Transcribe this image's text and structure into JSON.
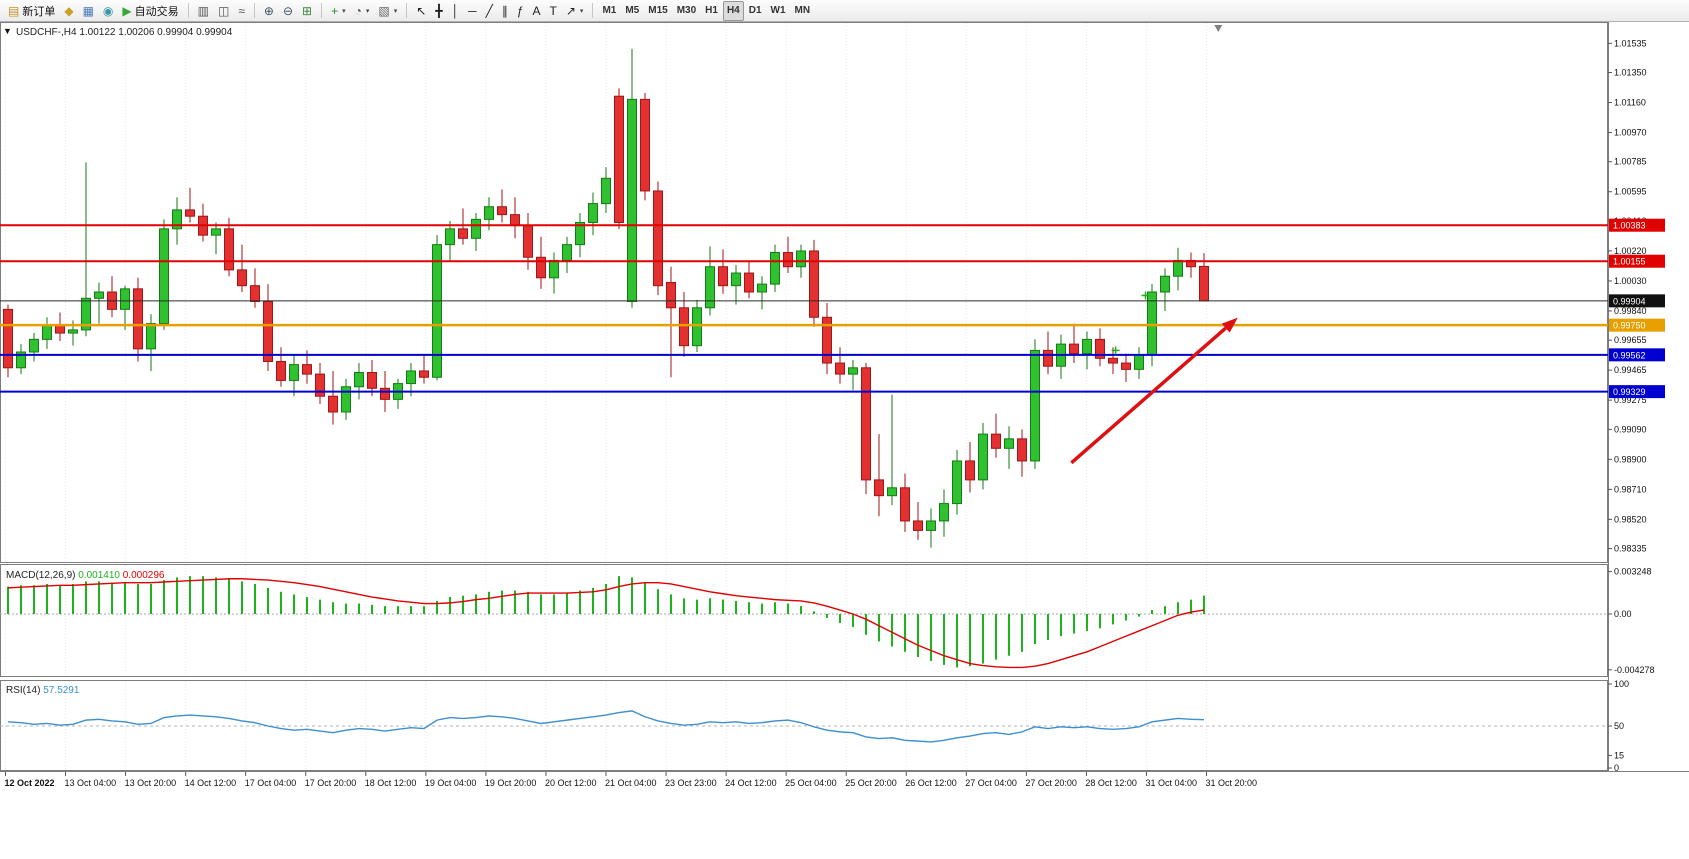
{
  "toolbar": {
    "notification_count": "1",
    "groups": [
      {
        "name": "trade",
        "items": [
          {
            "name": "new-order-button",
            "icon": "new-order-icon",
            "glyph": "▤",
            "glyph_color": "#c89028",
            "label": "新订单"
          },
          {
            "name": "market-watch-button",
            "icon": "market-watch-icon",
            "glyph": "◆",
            "glyph_color": "#c8a028"
          },
          {
            "name": "data-window-button",
            "icon": "data-window-icon",
            "glyph": "▦",
            "glyph_color": "#4878b8"
          },
          {
            "name": "navigator-button",
            "icon": "navigator-icon",
            "glyph": "◉",
            "glyph_color": "#3898a8"
          },
          {
            "name": "autotrading-button",
            "icon": "autotrading-icon",
            "glyph": "▶",
            "glyph_color": "#38a838",
            "label": "自动交易"
          }
        ]
      },
      {
        "name": "chart-type",
        "items": [
          {
            "name": "bar-chart-button",
            "icon": "bar-chart-icon",
            "glyph": "▥",
            "glyph_color": "#555555"
          },
          {
            "name": "candlestick-button",
            "icon": "candlestick-icon",
            "glyph": "◫",
            "glyph_color": "#555555"
          },
          {
            "name": "line-chart-button",
            "icon": "line-chart-icon",
            "glyph": "≈",
            "glyph_color": "#555555"
          }
        ]
      },
      {
        "name": "zoom",
        "items": [
          {
            "name": "zoom-in-button",
            "icon": "zoom-in-icon",
            "glyph": "⊕",
            "glyph_color": "#445566"
          },
          {
            "name": "zoom-out-button",
            "icon": "zoom-out-icon",
            "glyph": "⊖",
            "glyph_color": "#445566"
          },
          {
            "name": "tile-windows-button",
            "icon": "tile-windows-icon",
            "glyph": "⊞",
            "glyph_color": "#3a8a3a"
          }
        ]
      },
      {
        "name": "dropdowns",
        "items": [
          {
            "name": "indicators-button",
            "icon": "indicators-icon",
            "glyph": "+",
            "glyph_color": "#2a8a2a",
            "caret": true
          },
          {
            "name": "periods-button",
            "icon": "clock-icon",
            "glyph": "◔",
            "glyph_color": "#445566",
            "caret": true
          },
          {
            "name": "templates-button",
            "icon": "templates-icon",
            "glyph": "▧",
            "glyph_color": "#666666",
            "caret": true
          }
        ]
      },
      {
        "name": "tools",
        "items": [
          {
            "name": "cursor-button",
            "icon": "cursor-icon",
            "glyph": "↖",
            "glyph_color": "#222222"
          },
          {
            "name": "crosshair-button",
            "icon": "crosshair-icon",
            "glyph": "╋",
            "glyph_color": "#222222"
          },
          {
            "name": "vertical-line-button",
            "icon": "vertical-line-icon",
            "glyph": "│",
            "glyph_color": "#222222"
          },
          {
            "name": "horizontal-line-button",
            "icon": "horizontal-line-icon",
            "glyph": "─",
            "glyph_color": "#222222"
          },
          {
            "name": "trendline-button",
            "icon": "trendline-icon",
            "glyph": "╱",
            "glyph_color": "#222222"
          },
          {
            "name": "channel-button",
            "icon": "channel-icon",
            "glyph": "∥",
            "glyph_color": "#222222"
          },
          {
            "name": "fibonacci-button",
            "icon": "fibonacci-icon",
            "glyph": "ƒ",
            "glyph_color": "#222222"
          },
          {
            "name": "text-button",
            "icon": "text-icon",
            "glyph": "A",
            "glyph_color": "#222222"
          },
          {
            "name": "label-button",
            "icon": "text-label-icon",
            "glyph": "T",
            "glyph_color": "#222222"
          },
          {
            "name": "arrows-button",
            "icon": "arrows-icon",
            "glyph": "↗",
            "glyph_color": "#222222",
            "caret": true
          }
        ]
      }
    ],
    "timeframes": [
      "M1",
      "M5",
      "M15",
      "M30",
      "H1",
      "H4",
      "D1",
      "W1",
      "MN"
    ],
    "active_timeframe": "H4"
  },
  "chart_data": {
    "type": "candlestick",
    "symbol": "USDCHF-",
    "period": "H4",
    "info_line": "USDCHF-,H4 1.00122 1.00206 0.99904 0.99904",
    "ohlc": {
      "open": "1.00122",
      "high": "1.00206",
      "low": "0.99904",
      "close": "0.99904"
    },
    "colors": {
      "up": "#2FC12F",
      "up_border": "#157a15",
      "down": "#E33030",
      "down_border": "#A01515",
      "macd_hist": "#1DB31D",
      "macd_signal": "#E00000",
      "rsi": "#3E8FD0",
      "arrow": "#DD1111",
      "grid": "#e9e9e9",
      "frame": "#7d7d7d"
    },
    "price_scale": {
      "min": 0.9825,
      "max": 1.0167,
      "ticks": [
        "1.01535",
        "1.01350",
        "1.01160",
        "1.00970",
        "1.00785",
        "1.00595",
        "1.00410",
        "1.00220",
        "1.00030",
        "0.99840",
        "0.99655",
        "0.99465",
        "0.99275",
        "0.99090",
        "0.98900",
        "0.98710",
        "0.98520",
        "0.98335"
      ]
    },
    "time_labels": [
      "12 Oct 2022",
      "13 Oct 04:00",
      "13 Oct 20:00",
      "14 Oct 12:00",
      "17 Oct 04:00",
      "17 Oct 20:00",
      "18 Oct 12:00",
      "19 Oct 04:00",
      "19 Oct 20:00",
      "20 Oct 12:00",
      "21 Oct 04:00",
      "23 Oct 23:00",
      "24 Oct 12:00",
      "25 Oct 04:00",
      "25 Oct 20:00",
      "26 Oct 12:00",
      "27 Oct 04:00",
      "27 Oct 20:00",
      "28 Oct 12:00",
      "31 Oct 04:00",
      "31 Oct 20:00"
    ],
    "candles": [
      [
        0.9985,
        0.9988,
        0.9942,
        0.9948
      ],
      [
        0.9948,
        0.9963,
        0.9944,
        0.9958
      ],
      [
        0.9958,
        0.997,
        0.9952,
        0.9966
      ],
      [
        0.9966,
        0.998,
        0.996,
        0.9975
      ],
      [
        0.9975,
        0.9983,
        0.9965,
        0.997
      ],
      [
        0.997,
        0.9978,
        0.9962,
        0.9972
      ],
      [
        0.9972,
        1.0078,
        0.9968,
        0.9992
      ],
      [
        0.9992,
        1.0002,
        0.9976,
        0.9996
      ],
      [
        0.9996,
        1.0006,
        0.998,
        0.9985
      ],
      [
        0.9985,
        1.0,
        0.9972,
        0.9998
      ],
      [
        0.9998,
        1.0005,
        0.9952,
        0.996
      ],
      [
        0.996,
        0.9982,
        0.9946,
        0.9976
      ],
      [
        0.9976,
        1.0042,
        0.9972,
        1.0036
      ],
      [
        1.0036,
        1.0056,
        1.0026,
        1.0048
      ],
      [
        1.0048,
        1.0062,
        1.004,
        1.0044
      ],
      [
        1.0044,
        1.0052,
        1.0028,
        1.0032
      ],
      [
        1.0032,
        1.004,
        1.002,
        1.0036
      ],
      [
        1.0036,
        1.0043,
        1.0006,
        1.001
      ],
      [
        1.001,
        1.0026,
        0.9996,
        1.0
      ],
      [
        1.0,
        1.0011,
        0.9986,
        0.999
      ],
      [
        0.999,
        1.0001,
        0.9946,
        0.9952
      ],
      [
        0.9952,
        0.9961,
        0.9936,
        0.994
      ],
      [
        0.994,
        0.9956,
        0.993,
        0.995
      ],
      [
        0.995,
        0.9959,
        0.9938,
        0.9944
      ],
      [
        0.9944,
        0.9951,
        0.9925,
        0.993
      ],
      [
        0.993,
        0.9946,
        0.9912,
        0.992
      ],
      [
        0.992,
        0.9941,
        0.9915,
        0.9936
      ],
      [
        0.9936,
        0.9951,
        0.9928,
        0.9945
      ],
      [
        0.9945,
        0.9953,
        0.993,
        0.9935
      ],
      [
        0.9935,
        0.9946,
        0.992,
        0.9928
      ],
      [
        0.9928,
        0.9941,
        0.9922,
        0.9938
      ],
      [
        0.9938,
        0.9951,
        0.993,
        0.9946
      ],
      [
        0.9946,
        0.9956,
        0.9938,
        0.9942
      ],
      [
        0.9942,
        1.0032,
        0.994,
        1.0026
      ],
      [
        1.0026,
        1.0041,
        1.0016,
        1.0036
      ],
      [
        1.0036,
        1.0049,
        1.0026,
        1.003
      ],
      [
        1.003,
        1.0046,
        1.0022,
        1.0042
      ],
      [
        1.0042,
        1.0056,
        1.0035,
        1.005
      ],
      [
        1.005,
        1.0061,
        1.004,
        1.0045
      ],
      [
        1.0045,
        1.0056,
        1.003,
        1.0038
      ],
      [
        1.0038,
        1.0046,
        1.001,
        1.0018
      ],
      [
        1.0018,
        1.0031,
        0.9998,
        1.0005
      ],
      [
        1.0005,
        1.0021,
        0.9995,
        1.0016
      ],
      [
        1.0016,
        1.0031,
        1.0008,
        1.0026
      ],
      [
        1.0026,
        1.0046,
        1.0018,
        1.004
      ],
      [
        1.004,
        1.0059,
        1.0032,
        1.0052
      ],
      [
        1.0052,
        1.0075,
        1.0046,
        1.0068
      ],
      [
        1.012,
        1.0125,
        1.0036,
        1.004
      ],
      [
        0.999,
        1.015,
        0.9986,
        1.0118
      ],
      [
        1.0118,
        1.0122,
        1.0054,
        1.006
      ],
      [
        1.006,
        1.0066,
        0.9994,
        1.0
      ],
      [
        1.0002,
        1.0012,
        0.9942,
        0.9986
      ],
      [
        0.9986,
        0.9996,
        0.9955,
        0.9962
      ],
      [
        0.9962,
        0.9991,
        0.9958,
        0.9986
      ],
      [
        0.9986,
        1.0025,
        0.9981,
        1.0012
      ],
      [
        1.0012,
        1.0023,
        0.9995,
        1.0
      ],
      [
        1.0,
        1.0013,
        0.9988,
        1.0008
      ],
      [
        1.0008,
        1.0016,
        0.9992,
        0.9996
      ],
      [
        0.9996,
        1.0006,
        0.9985,
        1.0001
      ],
      [
        1.0001,
        1.0026,
        0.9996,
        1.0021
      ],
      [
        1.0021,
        1.0031,
        1.0008,
        1.0012
      ],
      [
        1.0012,
        1.0026,
        1.0005,
        1.0022
      ],
      [
        1.0022,
        1.0029,
        0.9974,
        0.998
      ],
      [
        0.998,
        0.9989,
        0.9944,
        0.9951
      ],
      [
        0.9951,
        0.9961,
        0.9938,
        0.9944
      ],
      [
        0.9944,
        0.9953,
        0.9934,
        0.9948
      ],
      [
        0.9948,
        0.9951,
        0.9868,
        0.9877
      ],
      [
        0.9877,
        0.9906,
        0.9854,
        0.9867
      ],
      [
        0.9867,
        0.9931,
        0.9861,
        0.9872
      ],
      [
        0.9872,
        0.9881,
        0.9844,
        0.9851
      ],
      [
        0.9851,
        0.9863,
        0.9839,
        0.9845
      ],
      [
        0.9845,
        0.9859,
        0.9834,
        0.9851
      ],
      [
        0.9851,
        0.9871,
        0.9841,
        0.9862
      ],
      [
        0.9862,
        0.9896,
        0.9855,
        0.9889
      ],
      [
        0.9889,
        0.9901,
        0.9869,
        0.9877
      ],
      [
        0.9877,
        0.9913,
        0.9871,
        0.9906
      ],
      [
        0.9906,
        0.9919,
        0.9891,
        0.9897
      ],
      [
        0.9897,
        0.9911,
        0.9884,
        0.9903
      ],
      [
        0.9903,
        0.9909,
        0.9879,
        0.9889
      ],
      [
        0.9889,
        0.9966,
        0.9884,
        0.9959
      ],
      [
        0.9959,
        0.9971,
        0.9944,
        0.9949
      ],
      [
        0.9949,
        0.9969,
        0.9941,
        0.9963
      ],
      [
        0.9963,
        0.9976,
        0.9951,
        0.9957
      ],
      [
        0.9957,
        0.9971,
        0.9947,
        0.9966
      ],
      [
        0.9966,
        0.9973,
        0.9949,
        0.9954
      ],
      [
        0.9954,
        0.9961,
        0.9944,
        0.9951
      ],
      [
        0.9951,
        0.9957,
        0.9939,
        0.9947
      ],
      [
        0.9947,
        0.9961,
        0.9941,
        0.9956
      ],
      [
        0.9956,
        1.0001,
        0.9949,
        0.9996
      ],
      [
        0.9996,
        1.0011,
        0.9984,
        1.0006
      ],
      [
        1.0006,
        1.0024,
        0.9997,
        1.0016
      ],
      [
        1.0016,
        1.0021,
        1.0005,
        1.0012
      ],
      [
        1.00122,
        1.00206,
        0.99904,
        0.99904
      ]
    ],
    "hlines": [
      {
        "name": "resistance-line-1",
        "value": 1.00383,
        "label": "1.00383",
        "color": "#e00000",
        "width": 2
      },
      {
        "name": "resistance-line-2",
        "value": 1.00155,
        "label": "1.00155",
        "color": "#e00000",
        "width": 2
      },
      {
        "name": "bid-price-line",
        "value": 0.99904,
        "label": "0.99904",
        "color": "#2a2a2a",
        "width": 1,
        "box": "#111111"
      },
      {
        "name": "pivot-line",
        "value": 0.9975,
        "label": "0.99750",
        "color": "#e8a000",
        "width": 2.5
      },
      {
        "name": "support-line-1",
        "value": 0.99562,
        "label": "0.99562",
        "color": "#0000d0",
        "width": 2
      },
      {
        "name": "support-line-2",
        "value": 0.99329,
        "label": "0.99329",
        "color": "#0000d0",
        "width": 2
      }
    ],
    "arrow": {
      "from_index": 81.8,
      "from_price": 0.98878,
      "to_index": 94.6,
      "to_price": 0.99798
    },
    "markers": [
      {
        "index": 85.2,
        "price": 0.9959
      },
      {
        "index": 87.5,
        "price": 0.99938
      }
    ],
    "shift_marker_index": 93.1,
    "macd": {
      "label": "MACD(12,26,9)",
      "value": "0.001410",
      "signal_value": "0.000296",
      "scale_labels": [
        "0.003248",
        "0.00",
        "-0.004278"
      ],
      "max": 0.0036,
      "min": -0.0046,
      "histogram": [
        0.0021,
        0.0022,
        0.0022,
        0.0023,
        0.0022,
        0.0023,
        0.0025,
        0.0025,
        0.0024,
        0.0024,
        0.0023,
        0.0023,
        0.0026,
        0.0028,
        0.0029,
        0.0029,
        0.0028,
        0.0027,
        0.0025,
        0.0023,
        0.002,
        0.0017,
        0.0015,
        0.0013,
        0.0011,
        0.0009,
        0.0008,
        0.0008,
        0.0007,
        0.0006,
        0.0006,
        0.0006,
        0.0006,
        0.001,
        0.0013,
        0.0014,
        0.0015,
        0.0017,
        0.0018,
        0.0018,
        0.0017,
        0.0015,
        0.0015,
        0.0016,
        0.0018,
        0.002,
        0.0023,
        0.0029,
        0.0028,
        0.0024,
        0.0019,
        0.0015,
        0.0012,
        0.0011,
        0.0012,
        0.0011,
        0.001,
        0.0009,
        0.0008,
        0.0009,
        0.0008,
        0.0006,
        0.0002,
        -0.0003,
        -0.0007,
        -0.001,
        -0.0016,
        -0.0021,
        -0.0025,
        -0.0029,
        -0.0033,
        -0.0036,
        -0.0039,
        -0.0041,
        -0.004,
        -0.0038,
        -0.0035,
        -0.0032,
        -0.0029,
        -0.0023,
        -0.002,
        -0.0017,
        -0.0015,
        -0.0013,
        -0.0011,
        -0.0008,
        -0.0005,
        -0.0002,
        0.0003,
        0.0006,
        0.0009,
        0.0011,
        0.00141
      ],
      "signal": [
        0.002,
        0.00205,
        0.0021,
        0.00215,
        0.0022,
        0.0022,
        0.00225,
        0.0023,
        0.00235,
        0.0024,
        0.0024,
        0.0024,
        0.00245,
        0.0025,
        0.00255,
        0.0026,
        0.00265,
        0.0027,
        0.0027,
        0.00265,
        0.0026,
        0.0025,
        0.0024,
        0.00225,
        0.0021,
        0.0019,
        0.0017,
        0.0015,
        0.0013,
        0.00115,
        0.001,
        0.0009,
        0.0008,
        0.0008,
        0.00085,
        0.00095,
        0.0011,
        0.0012,
        0.00135,
        0.0015,
        0.0016,
        0.0016,
        0.0016,
        0.0016,
        0.00165,
        0.0017,
        0.00185,
        0.0021,
        0.0023,
        0.0024,
        0.0024,
        0.0023,
        0.0021,
        0.0019,
        0.0017,
        0.00155,
        0.0014,
        0.0013,
        0.0012,
        0.0011,
        0.00105,
        0.001,
        0.00085,
        0.0006,
        0.0003,
        0.0,
        -0.0004,
        -0.0009,
        -0.0014,
        -0.0019,
        -0.0024,
        -0.0028,
        -0.0032,
        -0.0035,
        -0.0038,
        -0.00395,
        -0.00405,
        -0.0041,
        -0.0041,
        -0.004,
        -0.0038,
        -0.0035,
        -0.0032,
        -0.0029,
        -0.0025,
        -0.0021,
        -0.0017,
        -0.0013,
        -0.0009,
        -0.0005,
        -0.0001,
        0.00015,
        0.000296
      ]
    },
    "rsi": {
      "label": "RSI(14)",
      "value": "57.5291",
      "scale_labels": [
        "100",
        "50",
        "15",
        "0"
      ],
      "level": 50,
      "values": [
        55,
        54,
        52,
        53,
        51,
        52,
        57,
        58,
        56,
        55,
        52,
        53,
        60,
        62,
        63,
        62,
        61,
        59,
        56,
        54,
        50,
        47,
        45,
        46,
        44,
        42,
        45,
        47,
        46,
        44,
        46,
        48,
        47,
        57,
        60,
        59,
        60,
        62,
        61,
        59,
        56,
        53,
        55,
        57,
        59,
        61,
        63,
        66,
        68,
        61,
        56,
        53,
        51,
        52,
        55,
        54,
        55,
        53,
        54,
        56,
        57,
        54,
        49,
        45,
        43,
        42,
        37,
        35,
        36,
        33,
        32,
        31,
        33,
        36,
        38,
        41,
        42,
        40,
        43,
        49,
        47,
        49,
        48,
        49,
        47,
        46,
        47,
        49,
        55,
        57,
        59,
        58,
        57.5
      ]
    }
  }
}
